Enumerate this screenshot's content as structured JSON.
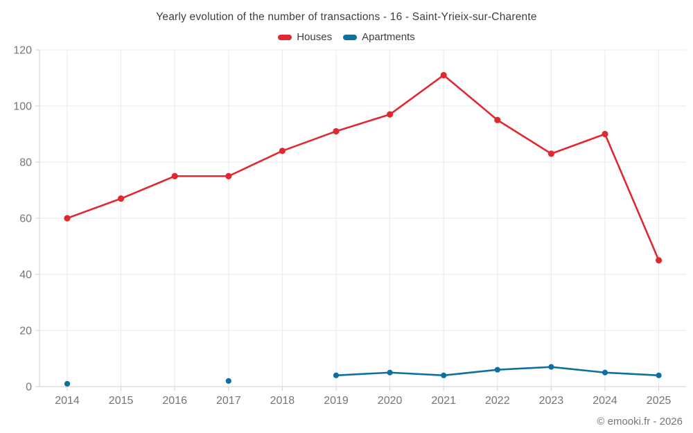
{
  "footer": "© emooki.fr - 2026",
  "colors": {
    "houses": "#e02830",
    "apartments": "#0f6fa0",
    "grid": "#e9e9e9",
    "axis": "#cfcfcf",
    "axis_label": "#757575",
    "title_text": "#3d3d3d"
  },
  "chart_data": {
    "type": "line",
    "title": "Yearly evolution of the number of transactions - 16 - Saint-Yrieix-sur-Charente",
    "categories": [
      "2014",
      "2015",
      "2016",
      "2017",
      "2018",
      "2019",
      "2020",
      "2021",
      "2022",
      "2023",
      "2024",
      "2025"
    ],
    "series": [
      {
        "name": "Houses",
        "color": "#e02830",
        "values": [
          60,
          67,
          75,
          75,
          84,
          91,
          97,
          111,
          95,
          83,
          90,
          45
        ]
      },
      {
        "name": "Apartments",
        "color": "#0f6fa0",
        "values": [
          1,
          null,
          null,
          2,
          null,
          4,
          5,
          4,
          6,
          7,
          5,
          4
        ]
      }
    ],
    "xlabel": "",
    "ylabel": "",
    "ylim": [
      0,
      120
    ],
    "yticks": [
      0,
      20,
      40,
      60,
      80,
      100,
      120
    ],
    "grid": true,
    "legend_position": "top"
  }
}
